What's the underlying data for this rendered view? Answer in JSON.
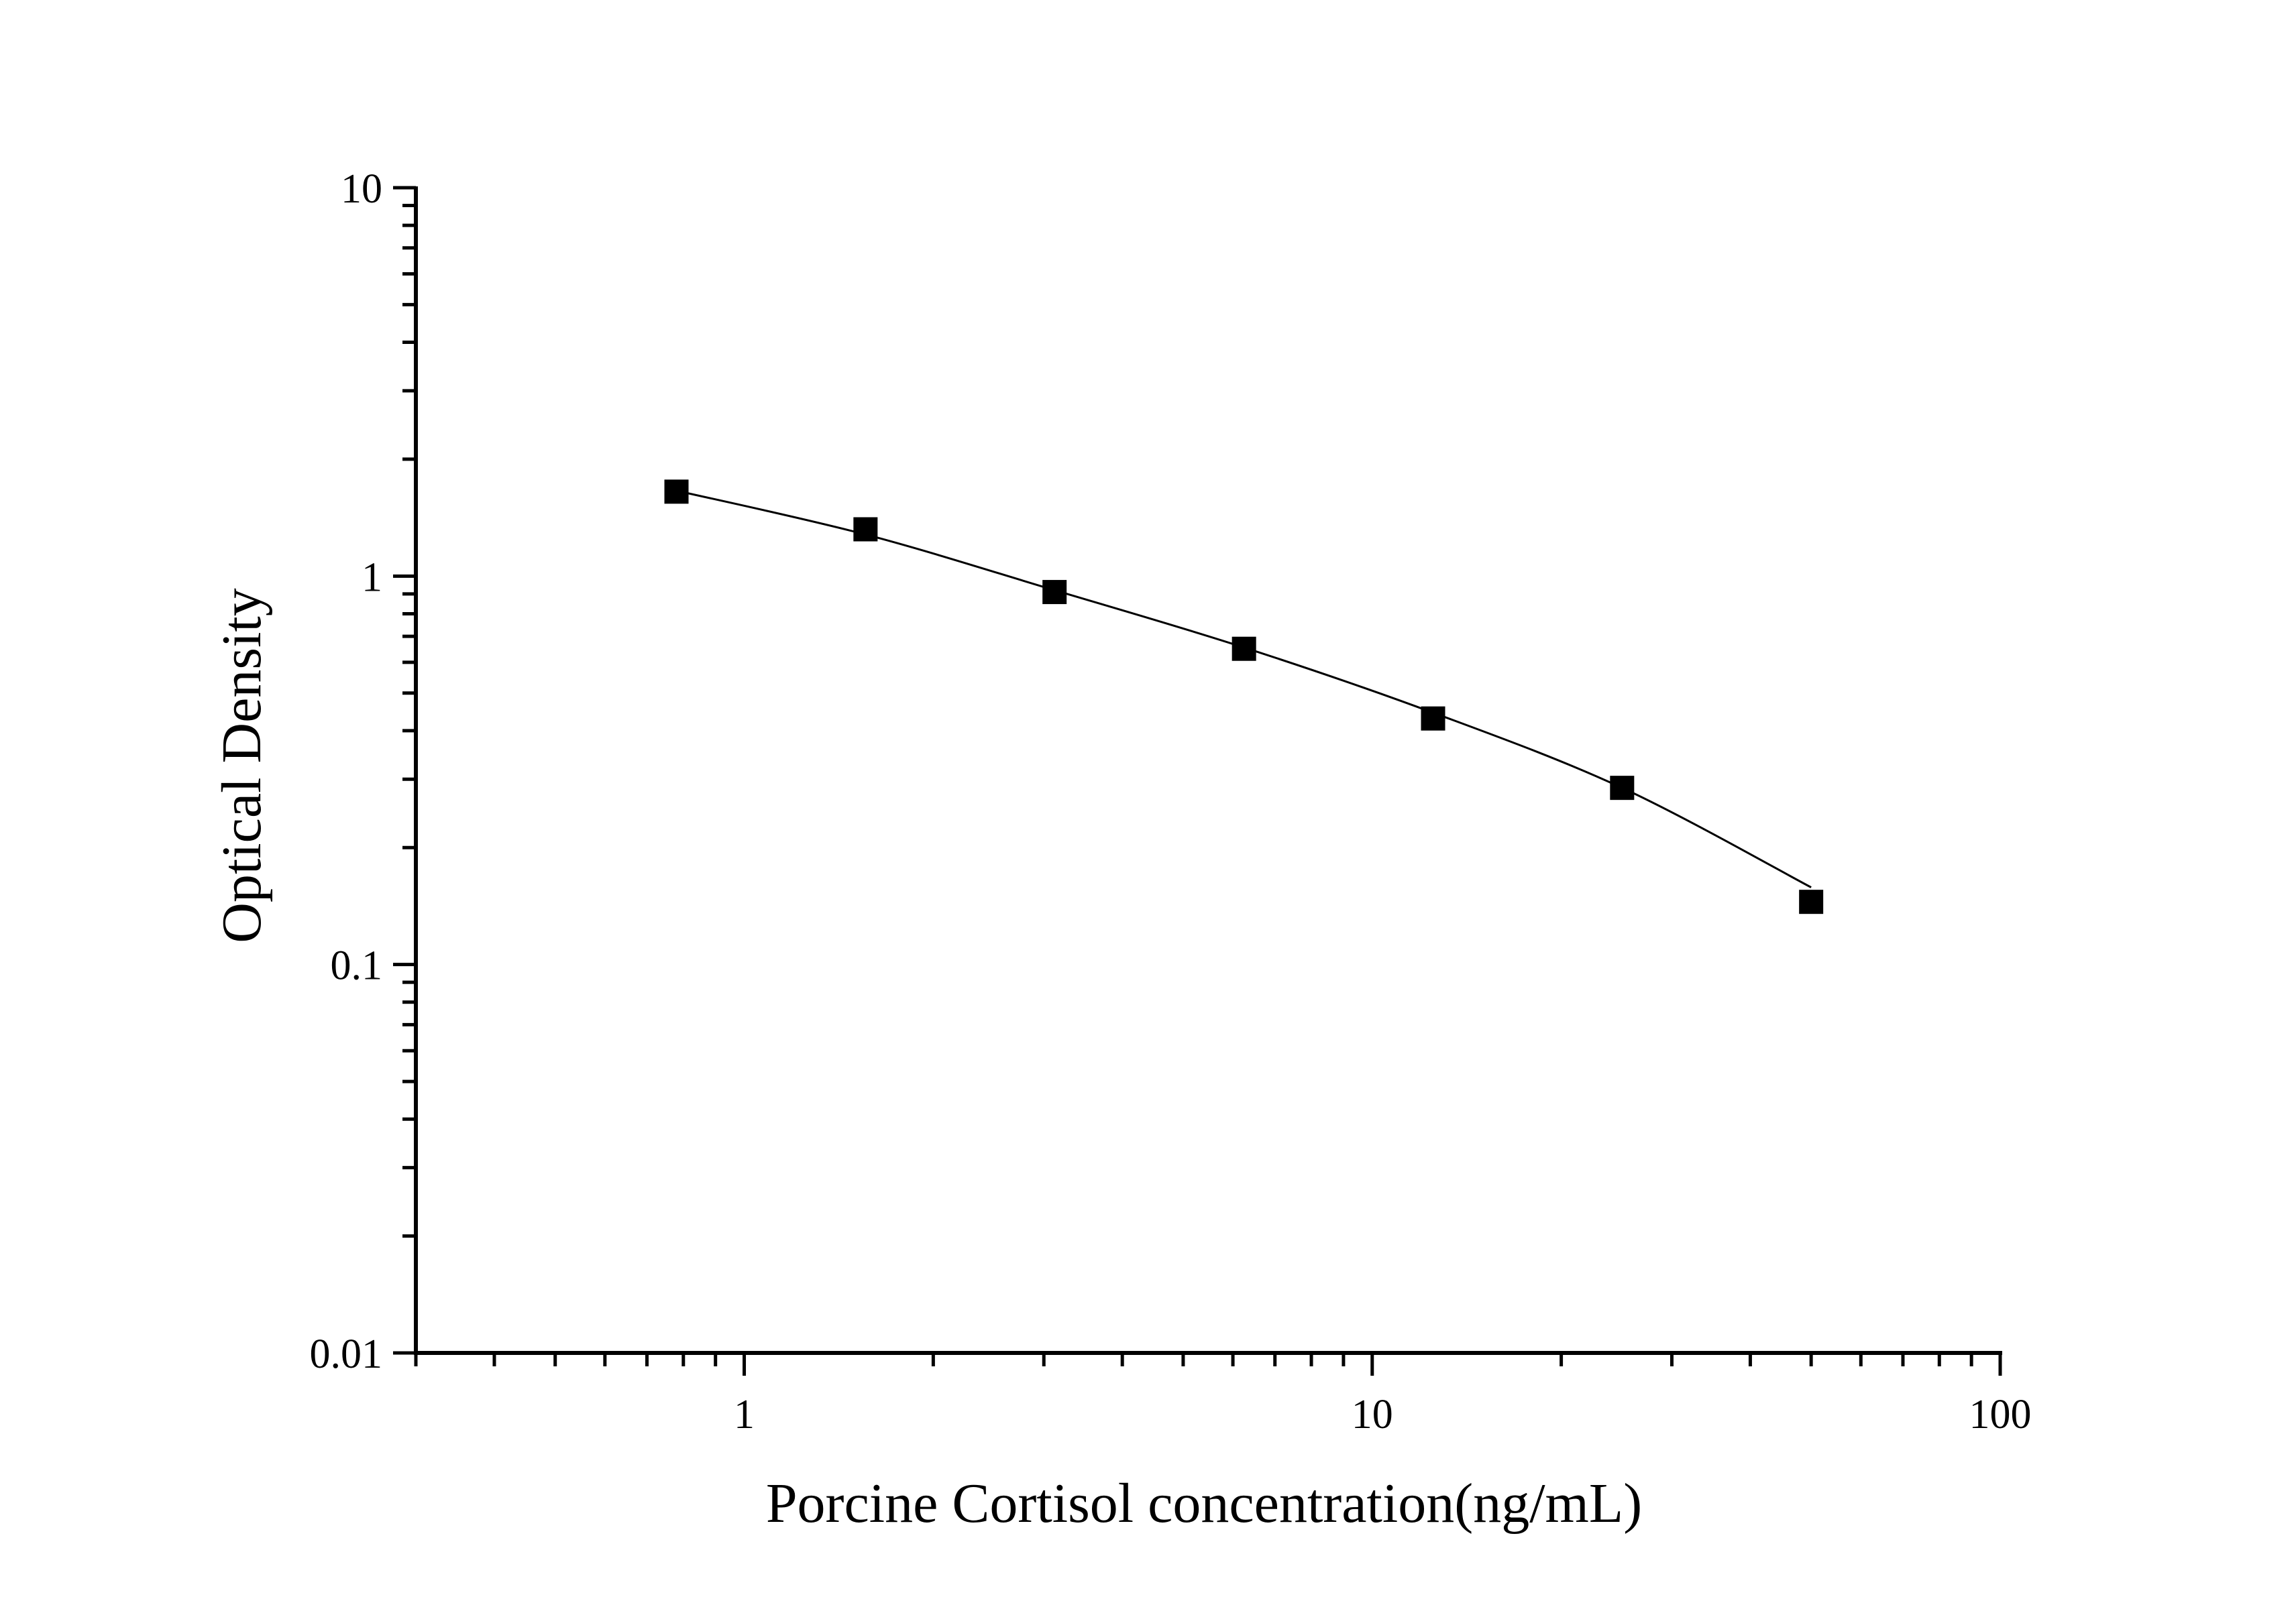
{
  "chart_data": {
    "type": "scatter",
    "title": "",
    "xlabel": "Porcine Cortisol concentration(ng/mL)",
    "ylabel": "Optical Density",
    "x_scale": "log",
    "y_scale": "log",
    "xlim": [
      0.3,
      100
    ],
    "ylim": [
      0.01,
      10
    ],
    "x_ticks": [
      "1",
      "10",
      "100"
    ],
    "y_ticks": [
      "0.01",
      "0.1",
      "1",
      "10"
    ],
    "grid": false,
    "legend": "none",
    "series": [
      {
        "marker": "square",
        "color": "#000000",
        "points": [
          {
            "x": 0.78,
            "y": 1.65
          },
          {
            "x": 1.56,
            "y": 1.32
          },
          {
            "x": 3.12,
            "y": 0.91
          },
          {
            "x": 6.25,
            "y": 0.65
          },
          {
            "x": 12.5,
            "y": 0.43
          },
          {
            "x": 25,
            "y": 0.285
          },
          {
            "x": 50,
            "y": 0.145
          }
        ]
      }
    ],
    "fit_curve": {
      "color": "#000000",
      "points": [
        {
          "x": 0.78,
          "y": 1.66
        },
        {
          "x": 1.56,
          "y": 1.28
        },
        {
          "x": 3.12,
          "y": 0.92
        },
        {
          "x": 6.25,
          "y": 0.655
        },
        {
          "x": 12.5,
          "y": 0.445
        },
        {
          "x": 25,
          "y": 0.285
        },
        {
          "x": 50,
          "y": 0.158
        }
      ]
    }
  }
}
